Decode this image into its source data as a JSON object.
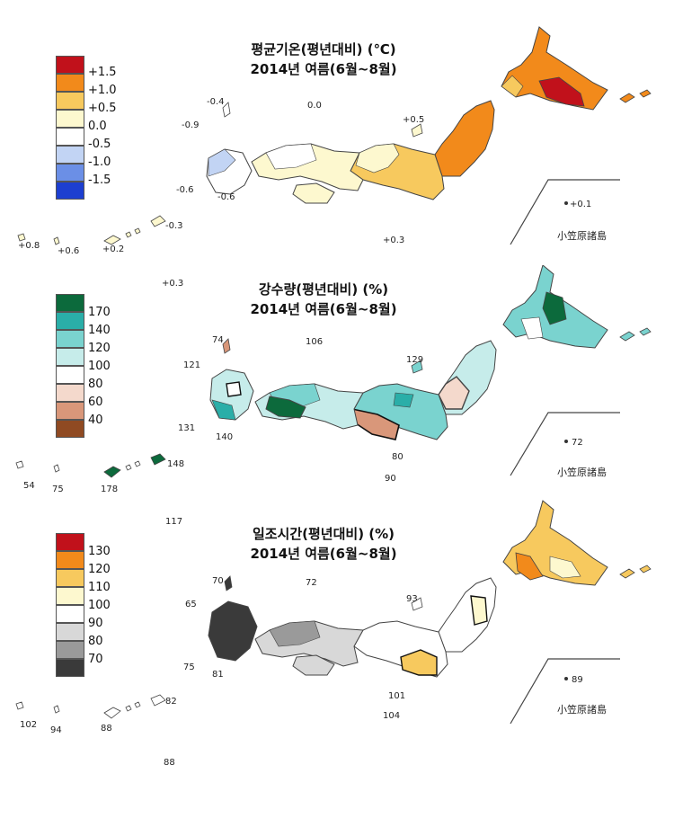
{
  "panels": [
    {
      "title_line1": "평균기온(평년대비) (℃)",
      "title_line2": "2014년 여름(6월~8월)",
      "legend": [
        {
          "label": "+1.5",
          "color": "#c1111b"
        },
        {
          "label": "+1.0",
          "color": "#f28a1b"
        },
        {
          "label": "+0.5",
          "color": "#f7c95e"
        },
        {
          "label": "0.0",
          "color": "#fdf8cf"
        },
        {
          "label": "-0.5",
          "color": "#ffffff"
        },
        {
          "label": "-1.0",
          "color": "#c2d4f4"
        },
        {
          "label": "-1.5",
          "color": "#6b8fe6"
        },
        {
          "label": "",
          "color": "#1d3fd0"
        }
      ],
      "annotations": [
        "-0.4",
        "0.0",
        "-0.9",
        "+0.5",
        "-0.6",
        "-0.6",
        "-0.3",
        "+0.8",
        "+0.6",
        "+0.2",
        "+0.3",
        "+0.3",
        "+0.1"
      ],
      "ogasawara": "小笠原諸島"
    },
    {
      "title_line1": "강수량(평년대비) (%)",
      "title_line2": "2014년 여름(6월~8월)",
      "legend": [
        {
          "label": "",
          "color": "#0c6a3c"
        },
        {
          "label": "170",
          "color": "#2aaea8"
        },
        {
          "label": "140",
          "color": "#7ad3cf"
        },
        {
          "label": "120",
          "color": "#c6ecea"
        },
        {
          "label": "100",
          "color": "#ffffff"
        },
        {
          "label": "80",
          "color": "#f4d9cc"
        },
        {
          "label": "60",
          "color": "#d9977a"
        },
        {
          "label": "40",
          "color": "#8f4a22"
        }
      ],
      "annotations": [
        "74",
        "106",
        "121",
        "129",
        "131",
        "140",
        "80",
        "90",
        "148",
        "54",
        "75",
        "178",
        "117",
        "72"
      ],
      "ogasawara": "小笠原諸島"
    },
    {
      "title_line1": "일조시간(평년대비) (%)",
      "title_line2": "2014년 여름(6월~8월)",
      "legend": [
        {
          "label": "130",
          "color": "#c1111b"
        },
        {
          "label": "120",
          "color": "#f28a1b"
        },
        {
          "label": "110",
          "color": "#f7c95e"
        },
        {
          "label": "100",
          "color": "#fdf8cf"
        },
        {
          "label": "90",
          "color": "#ffffff"
        },
        {
          "label": "80",
          "color": "#d8d8d8"
        },
        {
          "label": "70",
          "color": "#9a9a9a"
        },
        {
          "label": "",
          "color": "#3a3a3a"
        }
      ],
      "annotations": [
        "70",
        "72",
        "65",
        "93",
        "75",
        "81",
        "82",
        "101",
        "104",
        "102",
        "94",
        "88",
        "88",
        "89"
      ],
      "ogasawara": "小笠原諸島"
    }
  ]
}
